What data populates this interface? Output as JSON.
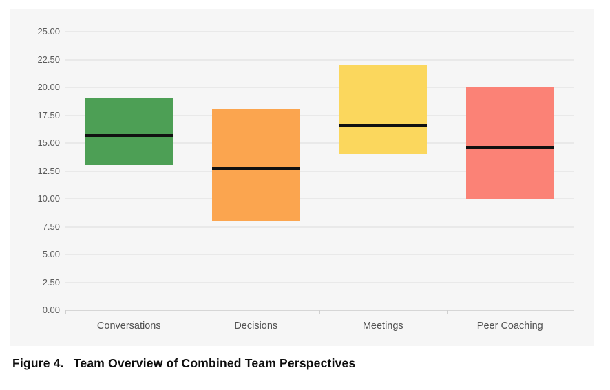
{
  "caption": {
    "label": "Figure 4.",
    "title": "Team Overview of Combined Team Perspectives"
  },
  "theme": {
    "page_background": "#ffffff",
    "panel_background": "#f6f6f6",
    "gridline_color": "#e9e9e9",
    "axis_line_color": "#d6d6d6",
    "axis_tick_color": "#cfcfcf",
    "y_label_color": "#5a5a5a",
    "x_label_color": "#525252",
    "caption_color": "#0d0d0d"
  },
  "chart_data": {
    "type": "bar",
    "variant": "floating-range-bars-with-mean-line",
    "title": "",
    "xlabel": "",
    "ylabel": "",
    "categories": [
      "Conversations",
      "Decisions",
      "Meetings",
      "Peer Coaching"
    ],
    "series": [
      {
        "category": "Conversations",
        "min": 13,
        "max": 19,
        "mean": 15.7,
        "color": "#4d9f55"
      },
      {
        "category": "Decisions",
        "min": 8,
        "max": 18,
        "mean": 12.7,
        "color": "#fba54f"
      },
      {
        "category": "Meetings",
        "min": 14,
        "max": 22,
        "mean": 16.6,
        "color": "#fbd75d"
      },
      {
        "category": "Peer Coaching",
        "min": 10,
        "max": 20,
        "mean": 14.6,
        "color": "#fb8276"
      }
    ],
    "mean_line_color": "#111111",
    "ylim": [
      0,
      25
    ],
    "ytick_step": 2.5,
    "yticks": [
      {
        "value": 0,
        "label": "0.00"
      },
      {
        "value": 2.5,
        "label": "2.50"
      },
      {
        "value": 5,
        "label": "5.00"
      },
      {
        "value": 7.5,
        "label": "7.50"
      },
      {
        "value": 10,
        "label": "10.00"
      },
      {
        "value": 12.5,
        "label": "12.50"
      },
      {
        "value": 15,
        "label": "15.00"
      },
      {
        "value": 17.5,
        "label": "17.50"
      },
      {
        "value": 20,
        "label": "20.00"
      },
      {
        "value": 22.5,
        "label": "22.50"
      },
      {
        "value": 25,
        "label": "25.00"
      }
    ],
    "grid": true,
    "legend": false
  }
}
